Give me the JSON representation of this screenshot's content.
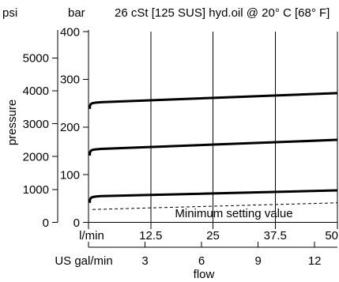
{
  "colors": {
    "ink": "#000000",
    "background": "#ffffff"
  },
  "chart_data": {
    "type": "line",
    "title": "26 cSt [125 SUS] hyd.oil @ 20° C [68° F]",
    "xlabel": "flow",
    "ylabel": "pressure",
    "x_axis": {
      "unit": "l/min",
      "range": [
        0,
        50
      ],
      "ticks": [
        12.5,
        25,
        37.5,
        50
      ],
      "tick_labels": [
        "12.5",
        "25",
        "37.5",
        "50"
      ],
      "grid": true
    },
    "x2_axis": {
      "unit": "US gal/min",
      "ticks": [
        3,
        6,
        9,
        12
      ],
      "tick_labels": [
        "3",
        "6",
        "9",
        "12"
      ]
    },
    "y_axis": {
      "unit": "bar",
      "range": [
        0,
        400
      ],
      "ticks": [
        0,
        100,
        200,
        300,
        400
      ],
      "tick_labels": [
        "0",
        "100",
        "200",
        "300",
        "400"
      ],
      "grid": false
    },
    "y2_axis": {
      "unit": "psi",
      "ticks": [
        0,
        1000,
        2000,
        3000,
        4000,
        5000
      ],
      "tick_labels": [
        "0",
        "1000",
        "2000",
        "3000",
        "4000",
        "5000"
      ]
    },
    "series": [
      {
        "values": [
          [
            0.25,
            238
          ],
          [
            0.28,
            244
          ],
          [
            0.45,
            248
          ],
          [
            0.8,
            250
          ],
          [
            1.4,
            251
          ],
          [
            2.5,
            252
          ],
          [
            50,
            271
          ]
        ]
      },
      {
        "values": [
          [
            0.25,
            140
          ],
          [
            0.28,
            146
          ],
          [
            0.45,
            150
          ],
          [
            0.8,
            152
          ],
          [
            1.4,
            153
          ],
          [
            2.5,
            154
          ],
          [
            50,
            173
          ]
        ]
      },
      {
        "values": [
          [
            0.25,
            41
          ],
          [
            0.28,
            47
          ],
          [
            0.45,
            51
          ],
          [
            0.8,
            53
          ],
          [
            1.4,
            54
          ],
          [
            2.5,
            55
          ],
          [
            50,
            67
          ]
        ]
      },
      {
        "name": "Minimum setting value",
        "dashed": true,
        "values": [
          [
            0.8,
            27
          ],
          [
            50,
            41
          ]
        ]
      }
    ]
  }
}
